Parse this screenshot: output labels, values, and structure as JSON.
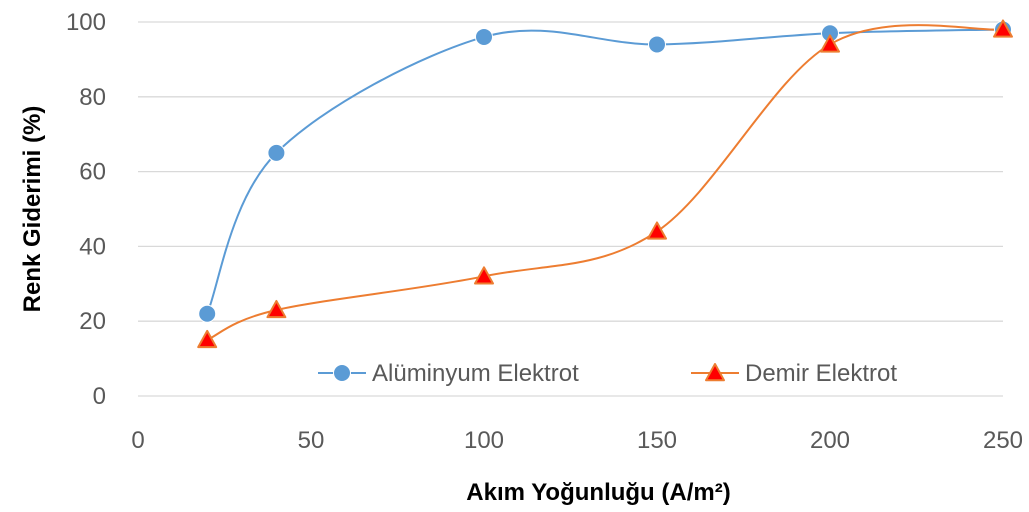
{
  "chart_data": {
    "type": "line",
    "smooth": true,
    "xlabel": "Akım Yoğunluğu (A/m²)",
    "ylabel": "Renk Giderimi (%)",
    "xlim": [
      0,
      250
    ],
    "ylim": [
      0,
      100
    ],
    "xticks": [
      0,
      50,
      100,
      150,
      200,
      250
    ],
    "yticks": [
      0,
      20,
      40,
      60,
      80,
      100
    ],
    "grid": "horizontal",
    "legend_position": "inside-bottom-right",
    "series": [
      {
        "name": "Alüminyum Elektrot",
        "color": "#5B9BD5",
        "marker": "circle",
        "x": [
          20,
          40,
          100,
          150,
          200,
          250
        ],
        "y": [
          22,
          65,
          96,
          94,
          97,
          98
        ]
      },
      {
        "name": "Demir Elektrot",
        "color": "#ED7D31",
        "marker": "triangle",
        "marker_fill": "#FF0000",
        "x": [
          20,
          40,
          100,
          150,
          200,
          250
        ],
        "y": [
          15,
          23,
          32,
          44,
          94,
          98
        ]
      }
    ]
  }
}
